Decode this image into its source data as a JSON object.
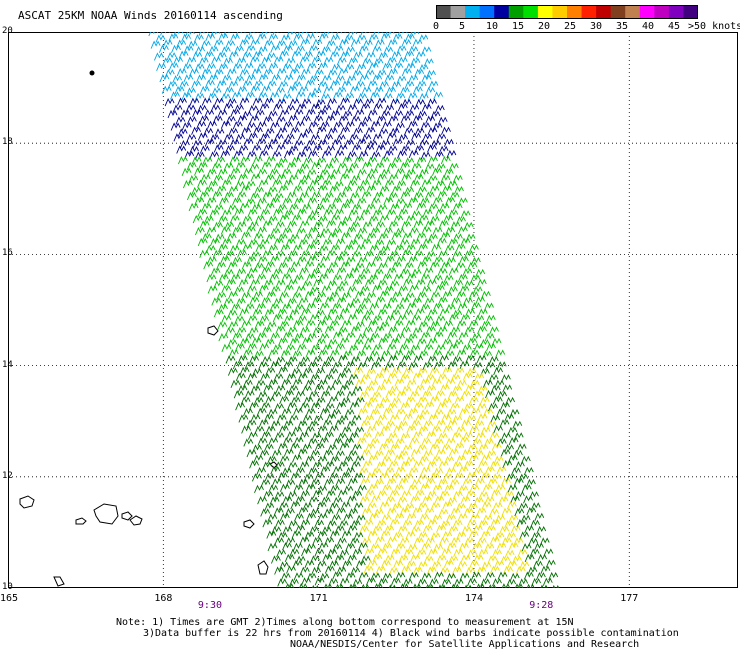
{
  "title": "ASCAT 25KM NOAA Winds 20160114 ascending",
  "legend": {
    "colors": [
      "#505050",
      "#a0a0a0",
      "#00b0f0",
      "#0070ff",
      "#0000a0",
      "#00a000",
      "#00e000",
      "#ffff00",
      "#ffcc00",
      "#ff8000",
      "#ff2000",
      "#c00000",
      "#804020",
      "#c08050",
      "#ff00ff",
      "#c000c0",
      "#8000c0",
      "#400080"
    ],
    "labels": [
      "0",
      "5",
      "10",
      "15",
      "20",
      "25",
      "30",
      "35",
      "40",
      "45"
    ],
    "max_label": ">50 knots"
  },
  "map": {
    "lat_labels": [
      "20",
      "18",
      "16",
      "14",
      "12",
      "10"
    ],
    "lat_values": [
      20,
      18,
      16,
      14,
      12,
      10
    ],
    "lon_labels": [
      "165",
      "168",
      "171",
      "174",
      "177"
    ],
    "lon_values": [
      165,
      168,
      171,
      174,
      177
    ],
    "lat_range": [
      10,
      20
    ],
    "lon_range": [
      165,
      179.1
    ],
    "grid": "dotted",
    "time_labels": [
      {
        "text": "9:30",
        "lon": 168.9
      },
      {
        "text": "9:28",
        "lon": 175.3
      }
    ],
    "swath": {
      "corners_lat_lon": [
        [
          20,
          167.6
        ],
        [
          20,
          172.9
        ],
        [
          10,
          175.5
        ],
        [
          10,
          170.1
        ]
      ],
      "wind_zones": [
        {
          "name": "north",
          "lat_range": [
            18.8,
            20
          ],
          "color": "#00a8e8"
        },
        {
          "name": "middle-north",
          "lat_range": [
            17.7,
            18.8
          ],
          "color": "#000090"
        },
        {
          "name": "middle",
          "lat_range": [
            14.2,
            17.7
          ],
          "color": "#00c000"
        },
        {
          "name": "south",
          "lat_range": [
            10,
            14.2
          ],
          "color": "#007000"
        },
        {
          "name": "yellow-patch",
          "lat_range": [
            10.3,
            13.9
          ],
          "color": "#f0e000"
        }
      ]
    }
  },
  "notes": {
    "line1": "Note: 1) Times are GMT 2)Times along bottom correspond to measurement at 15N",
    "line2": "3)Data buffer is 22 hrs from 20160114 4) Black wind barbs indicate possible contamination",
    "line3": "NOAA/NESDIS/Center for Satellite Applications and Research"
  }
}
